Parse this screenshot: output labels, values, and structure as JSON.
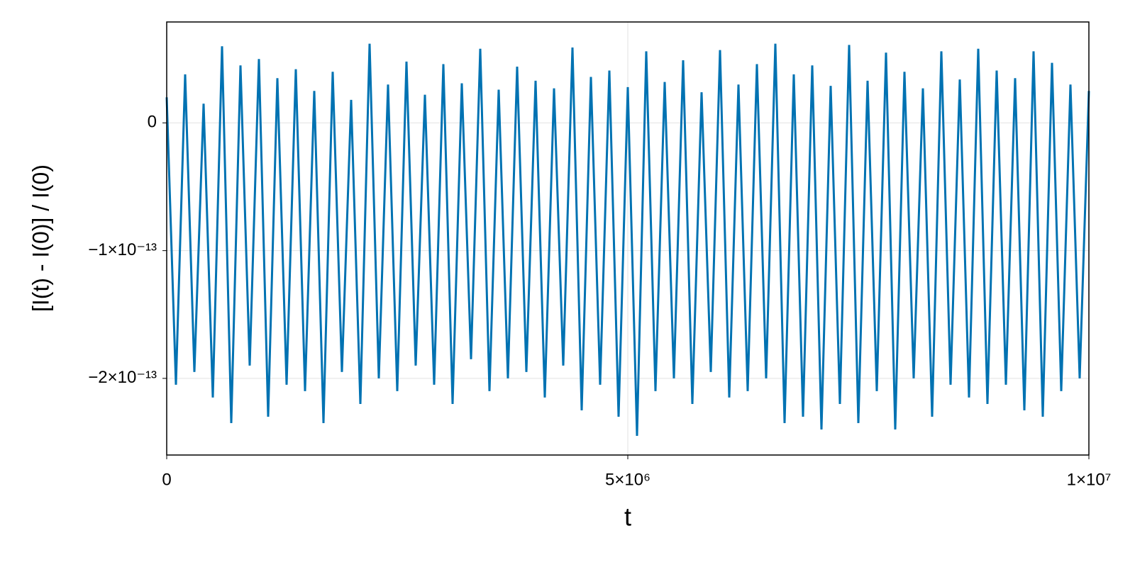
{
  "chart_data": {
    "type": "line",
    "xlabel": "t",
    "ylabel": "[I(t) - I(0)] / I(0)",
    "x": [
      0,
      100000,
      200000,
      300000,
      400000,
      500000,
      600000,
      700000,
      800000,
      900000,
      1000000,
      1100000,
      1200000,
      1300000,
      1400000,
      1500000,
      1600000,
      1700000,
      1800000,
      1900000,
      2000000,
      2100000,
      2200000,
      2300000,
      2400000,
      2500000,
      2600000,
      2700000,
      2800000,
      2900000,
      3000000,
      3100000,
      3200000,
      3300000,
      3400000,
      3500000,
      3600000,
      3700000,
      3800000,
      3900000,
      4000000,
      4100000,
      4200000,
      4300000,
      4400000,
      4500000,
      4600000,
      4700000,
      4800000,
      4900000,
      5000000,
      5100000,
      5200000,
      5300000,
      5400000,
      5500000,
      5600000,
      5700000,
      5800000,
      5900000,
      6000000,
      6100000,
      6200000,
      6300000,
      6400000,
      6500000,
      6600000,
      6700000,
      6800000,
      6900000,
      7000000,
      7100000,
      7200000,
      7300000,
      7400000,
      7500000,
      7600000,
      7700000,
      7800000,
      7900000,
      8000000,
      8100000,
      8200000,
      8300000,
      8400000,
      8500000,
      8600000,
      8700000,
      8800000,
      8900000,
      9000000,
      9100000,
      9200000,
      9300000,
      9400000,
      9500000,
      9600000,
      9700000,
      9800000,
      9900000,
      10000000
    ],
    "series": [
      {
        "color": "#0072b2",
        "values": [
          2e-14,
          -2.05e-13,
          3.8e-14,
          -1.95e-13,
          1.5e-14,
          -2.15e-13,
          6e-14,
          -2.35e-13,
          4.5e-14,
          -1.9e-13,
          5e-14,
          -2.3e-13,
          3.5e-14,
          -2.05e-13,
          4.2e-14,
          -2.1e-13,
          2.5e-14,
          -2.35e-13,
          4e-14,
          -1.95e-13,
          1.8e-14,
          -2.2e-13,
          6.2e-14,
          -2e-13,
          3e-14,
          -2.1e-13,
          4.8e-14,
          -1.9e-13,
          2.2e-14,
          -2.05e-13,
          4.6e-14,
          -2.2e-13,
          3.1e-14,
          -1.85e-13,
          5.8e-14,
          -2.1e-13,
          2.6e-14,
          -2e-13,
          4.4e-14,
          -1.95e-13,
          3.3e-14,
          -2.15e-13,
          2.7e-14,
          -1.9e-13,
          5.9e-14,
          -2.25e-13,
          3.6e-14,
          -2.05e-13,
          4.1e-14,
          -2.3e-13,
          2.8e-14,
          -2.45e-13,
          5.6e-14,
          -2.1e-13,
          3.2e-14,
          -2e-13,
          4.9e-14,
          -2.2e-13,
          2.4e-14,
          -1.95e-13,
          5.7e-14,
          -2.15e-13,
          3e-14,
          -2.1e-13,
          4.6e-14,
          -2e-13,
          6.2e-14,
          -2.35e-13,
          3.8e-14,
          -2.3e-13,
          4.5e-14,
          -2.4e-13,
          2.9e-14,
          -2.2e-13,
          6.1e-14,
          -2.35e-13,
          3.3e-14,
          -2.1e-13,
          5.5e-14,
          -2.4e-13,
          4e-14,
          -2e-13,
          2.7e-14,
          -2.3e-13,
          5.6e-14,
          -2.05e-13,
          3.4e-14,
          -2.15e-13,
          5.8e-14,
          -2.2e-13,
          4.1e-14,
          -2.05e-13,
          3.5e-14,
          -2.25e-13,
          5.6e-14,
          -2.3e-13,
          4.7e-14,
          -2.1e-13,
          3e-14,
          -2e-13,
          2.5e-14
        ]
      }
    ],
    "xlim": [
      0,
      10000000
    ],
    "xticks": [
      0,
      {
        "value": 5000000,
        "label": "5×10⁶"
      },
      {
        "value": 10000000,
        "label": "1×10⁷"
      }
    ],
    "ylim": [
      -2.6e-13,
      7.9e-14
    ],
    "yticks": [
      0,
      {
        "value": -1e-13,
        "label": "−1×10⁻¹³"
      },
      {
        "value": -2e-13,
        "label": "−2×10⁻¹³"
      }
    ],
    "grid": true
  }
}
